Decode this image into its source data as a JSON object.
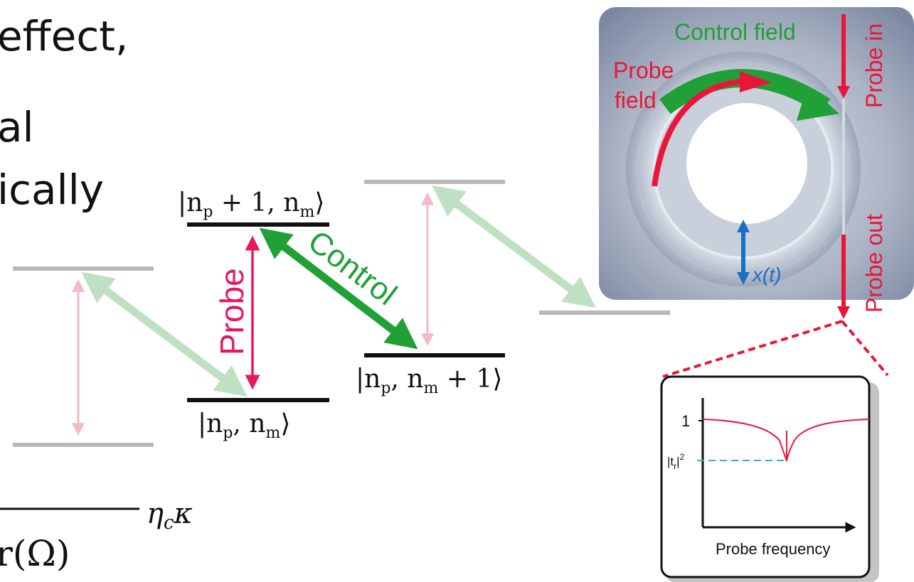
{
  "slide_text": {
    "line1": "effect,",
    "line2": "al",
    "line3": "ically",
    "formula_fragment": "r(Ω)",
    "formula_sup": "η",
    "formula_sup_sub": "c",
    "formula_sup_tail": "κ"
  },
  "energy_levels": {
    "upper_label": "|n",
    "upper_label_sub": "p",
    "upper_label_mid": " + 1, n",
    "upper_label_sub2": "m",
    "upper_label_end": "⟩",
    "ground_label": "|n",
    "ground_label_sub": "p",
    "ground_label_mid": ", n",
    "ground_label_sub2": "m",
    "ground_label_end": "⟩",
    "right_label": "|n",
    "right_label_sub": "p",
    "right_label_mid": ", n",
    "right_label_sub2": "m",
    "right_label_end": " + 1⟩",
    "probe_text": "Probe",
    "control_text": "Control",
    "colors": {
      "probe": "#e8175d",
      "control": "#21a038",
      "faint_probe": "#f5b9c3",
      "faint_control": "#bfe0c2",
      "grey_level": "#b8b8b8",
      "black_level": "#111111"
    }
  },
  "photo": {
    "control_field_label": "Control field",
    "probe_field_label_1": "Probe",
    "probe_field_label_2": "field",
    "probe_in_label": "Probe in",
    "probe_out_label": "Probe out",
    "displacement_label": "x(t)",
    "colors": {
      "red": "#e8173a",
      "green": "#21a038",
      "blue": "#1a6fc4"
    }
  },
  "inset": {
    "y_tick_1": "1",
    "y_tick_tr_base": "|t",
    "y_tick_tr_sub": "r",
    "y_tick_tr_tail": "|",
    "y_tick_tr_sup": "2",
    "x_axis_label": "Probe frequency"
  }
}
